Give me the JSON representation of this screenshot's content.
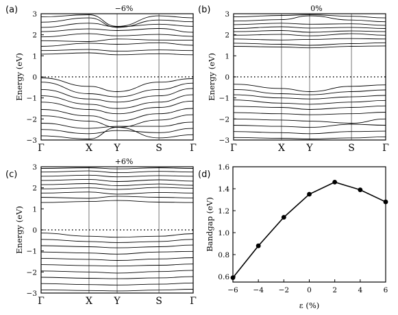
{
  "figure": {
    "panels": [
      {
        "label": "(a)",
        "title": "−6%"
      },
      {
        "label": "(b)",
        "title": "0%"
      },
      {
        "label": "(c)",
        "title": "+6%"
      },
      {
        "label": "(d)",
        "title": ""
      }
    ]
  },
  "chart_data": [
    {
      "panel": "(a)",
      "type": "line",
      "title": "−6%",
      "ylabel": "Energy (eV)",
      "ylim": [
        -3,
        3
      ],
      "yticks": [
        "−3",
        "−2",
        "−1",
        "0",
        "1",
        "2",
        "3"
      ],
      "xticks": [
        "Γ",
        "X",
        "Y",
        "S",
        "Γ"
      ],
      "fermi_level": 0,
      "note": "electronic band structure; many bands, values approximate",
      "series": [
        {
          "values": [
            1.08,
            1.14,
            1.05,
            1.1,
            1.05
          ]
        },
        {
          "values": [
            1.25,
            1.3,
            1.22,
            1.28,
            1.25
          ]
        },
        {
          "values": [
            1.45,
            1.6,
            1.55,
            1.62,
            1.5
          ]
        },
        {
          "values": [
            1.72,
            1.68,
            1.8,
            1.75,
            1.74
          ]
        },
        {
          "values": [
            1.9,
            2.05,
            1.95,
            2.02,
            1.92
          ]
        },
        {
          "values": [
            2.15,
            2.28,
            2.2,
            2.3,
            2.12
          ]
        },
        {
          "values": [
            2.35,
            2.55,
            2.38,
            2.5,
            2.4
          ]
        },
        {
          "values": [
            2.6,
            2.8,
            2.35,
            2.7,
            2.62
          ]
        },
        {
          "values": [
            2.85,
            2.95,
            2.4,
            2.9,
            2.8
          ]
        },
        {
          "values": [
            -0.05,
            -0.45,
            -0.7,
            -0.25,
            -0.08
          ]
        },
        {
          "values": [
            -0.25,
            -0.8,
            -0.95,
            -0.6,
            -0.3
          ]
        },
        {
          "values": [
            -0.6,
            -1.05,
            -1.2,
            -0.9,
            -0.55
          ]
        },
        {
          "values": [
            -0.9,
            -1.3,
            -1.5,
            -1.2,
            -0.85
          ]
        },
        {
          "values": [
            -1.2,
            -1.55,
            -1.75,
            -1.45,
            -1.15
          ]
        },
        {
          "values": [
            -1.55,
            -1.85,
            -2.1,
            -1.75,
            -1.5
          ]
        },
        {
          "values": [
            -1.85,
            -2.1,
            -2.4,
            -2.05,
            -1.8
          ]
        },
        {
          "values": [
            -2.2,
            -2.45,
            -2.35,
            -2.35,
            -2.15
          ]
        },
        {
          "values": [
            -2.5,
            -2.7,
            -2.55,
            -2.65,
            -2.45
          ]
        },
        {
          "values": [
            -2.8,
            -2.95,
            -2.4,
            -2.9,
            -2.75
          ]
        }
      ]
    },
    {
      "panel": "(b)",
      "type": "line",
      "title": "0%",
      "ylabel": "Energy (eV)",
      "ylim": [
        -3,
        3
      ],
      "yticks": [
        "−3",
        "−2",
        "−1",
        "0",
        "1",
        "2",
        "3"
      ],
      "xticks": [
        "Γ",
        "X",
        "Y",
        "S",
        "Γ"
      ],
      "fermi_level": 0,
      "note": "electronic band structure; many bands, values approximate",
      "series": [
        {
          "values": [
            1.45,
            1.42,
            1.38,
            1.45,
            1.47
          ]
        },
        {
          "values": [
            1.6,
            1.55,
            1.5,
            1.58,
            1.62
          ]
        },
        {
          "values": [
            1.8,
            1.75,
            1.78,
            1.82,
            1.8
          ]
        },
        {
          "values": [
            1.98,
            2.02,
            1.95,
            2.05,
            1.98
          ]
        },
        {
          "values": [
            2.15,
            2.2,
            2.12,
            2.18,
            2.15
          ]
        },
        {
          "values": [
            2.3,
            2.38,
            2.32,
            2.35,
            2.3
          ]
        },
        {
          "values": [
            2.48,
            2.55,
            2.5,
            2.52,
            2.45
          ]
        },
        {
          "values": [
            2.65,
            2.72,
            2.9,
            2.7,
            2.62
          ]
        },
        {
          "values": [
            2.85,
            2.92,
            2.95,
            2.88,
            2.8
          ]
        },
        {
          "values": [
            -0.35,
            -0.55,
            -0.7,
            -0.45,
            -0.38
          ]
        },
        {
          "values": [
            -0.6,
            -0.8,
            -0.85,
            -0.7,
            -0.62
          ]
        },
        {
          "values": [
            -0.85,
            -1.0,
            -1.05,
            -0.95,
            -0.88
          ]
        },
        {
          "values": [
            -1.1,
            -1.25,
            -1.3,
            -1.2,
            -1.12
          ]
        },
        {
          "values": [
            -1.4,
            -1.45,
            -1.55,
            -1.45,
            -1.38
          ]
        },
        {
          "values": [
            -1.7,
            -1.75,
            -1.8,
            -1.75,
            -1.68
          ]
        },
        {
          "values": [
            -2.0,
            -2.05,
            -2.1,
            -2.2,
            -2.0
          ]
        },
        {
          "values": [
            -2.3,
            -2.35,
            -2.4,
            -2.25,
            -2.3
          ]
        },
        {
          "values": [
            -2.6,
            -2.65,
            -2.7,
            -2.6,
            -2.58
          ]
        },
        {
          "values": [
            -2.88,
            -2.92,
            -2.95,
            -2.9,
            -2.85
          ]
        }
      ]
    },
    {
      "panel": "(c)",
      "type": "line",
      "title": "+6%",
      "ylabel": "Energy (eV)",
      "ylim": [
        -3,
        3
      ],
      "yticks": [
        "−3",
        "−2",
        "−1",
        "0",
        "1",
        "2",
        "3"
      ],
      "xticks": [
        "Γ",
        "X",
        "Y",
        "S",
        "Γ"
      ],
      "fermi_level": 0,
      "note": "electronic band structure; many bands, values approximate",
      "series": [
        {
          "values": [
            1.3,
            1.35,
            1.4,
            1.32,
            1.3
          ]
        },
        {
          "values": [
            1.55,
            1.5,
            1.6,
            1.55,
            1.52
          ]
        },
        {
          "values": [
            1.75,
            1.8,
            1.7,
            1.78,
            1.75
          ]
        },
        {
          "values": [
            1.95,
            2.0,
            1.92,
            2.02,
            1.98
          ]
        },
        {
          "values": [
            2.15,
            2.2,
            2.1,
            2.18,
            2.12
          ]
        },
        {
          "values": [
            2.35,
            2.4,
            2.3,
            2.38,
            2.32
          ]
        },
        {
          "values": [
            2.55,
            2.6,
            2.52,
            2.58,
            2.55
          ]
        },
        {
          "values": [
            2.75,
            2.8,
            2.72,
            2.78,
            2.75
          ]
        },
        {
          "values": [
            2.92,
            2.95,
            2.9,
            2.95,
            2.92
          ]
        },
        {
          "values": [
            -0.15,
            -0.3,
            -0.35,
            -0.3,
            -0.18
          ]
        },
        {
          "values": [
            -0.45,
            -0.55,
            -0.6,
            -0.55,
            -0.45
          ]
        },
        {
          "values": [
            -0.75,
            -0.8,
            -0.85,
            -0.8,
            -0.72
          ]
        },
        {
          "values": [
            -1.05,
            -1.1,
            -1.15,
            -1.05,
            -1.02
          ]
        },
        {
          "values": [
            -1.35,
            -1.4,
            -1.45,
            -1.38,
            -1.32
          ]
        },
        {
          "values": [
            -1.65,
            -1.7,
            -1.72,
            -1.68,
            -1.62
          ]
        },
        {
          "values": [
            -1.95,
            -2.0,
            -2.05,
            -1.98,
            -1.92
          ]
        },
        {
          "values": [
            -2.25,
            -2.3,
            -2.32,
            -2.28,
            -2.22
          ]
        },
        {
          "values": [
            -2.55,
            -2.6,
            -2.62,
            -2.58,
            -2.52
          ]
        },
        {
          "values": [
            -2.85,
            -2.88,
            -2.9,
            -2.86,
            -2.82
          ]
        }
      ]
    },
    {
      "panel": "(d)",
      "type": "line",
      "title": "",
      "xlabel": "ε (%)",
      "ylabel": "Bandgap (eV)",
      "xlim": [
        -6,
        6
      ],
      "ylim": [
        0.55,
        1.6
      ],
      "xticks": [
        "−6",
        "−4",
        "−2",
        "0",
        "2",
        "4",
        "6"
      ],
      "yticks": [
        "0.6",
        "0.8",
        "1.0",
        "1.2",
        "1.4",
        "1.6"
      ],
      "series": [
        {
          "x": [
            -6,
            -4,
            -2,
            0,
            2,
            4,
            6
          ],
          "values": [
            0.59,
            0.88,
            1.14,
            1.35,
            1.46,
            1.39,
            1.28
          ]
        }
      ]
    }
  ]
}
